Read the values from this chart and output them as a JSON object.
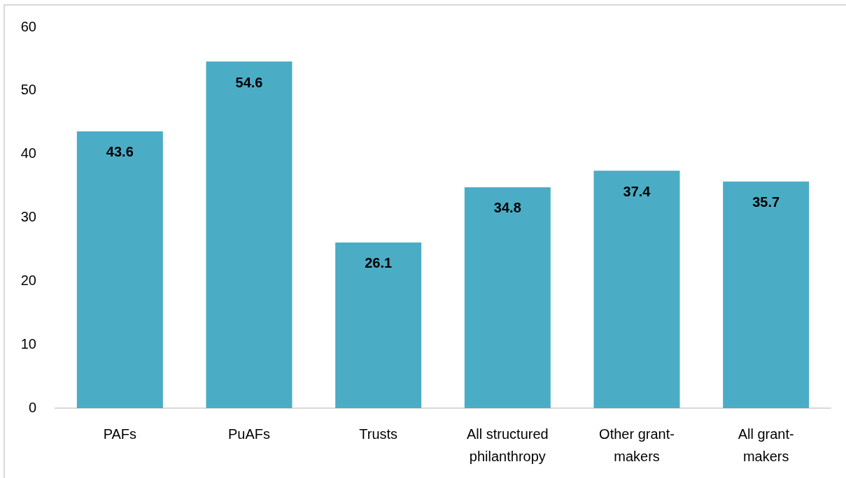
{
  "chart_data": {
    "type": "bar",
    "categories": [
      "PAFs",
      "PuAFs",
      "Trusts",
      "All structured philanthropy",
      "Other grant-makers",
      "All grant-makers"
    ],
    "values": [
      43.6,
      54.6,
      26.1,
      34.8,
      37.4,
      35.7
    ],
    "color": "#4bacc6",
    "ylim": [
      0,
      60
    ],
    "yticks": [
      0,
      10,
      20,
      30,
      40,
      50,
      60
    ],
    "data_labels": true,
    "grid": false,
    "legend": false
  }
}
